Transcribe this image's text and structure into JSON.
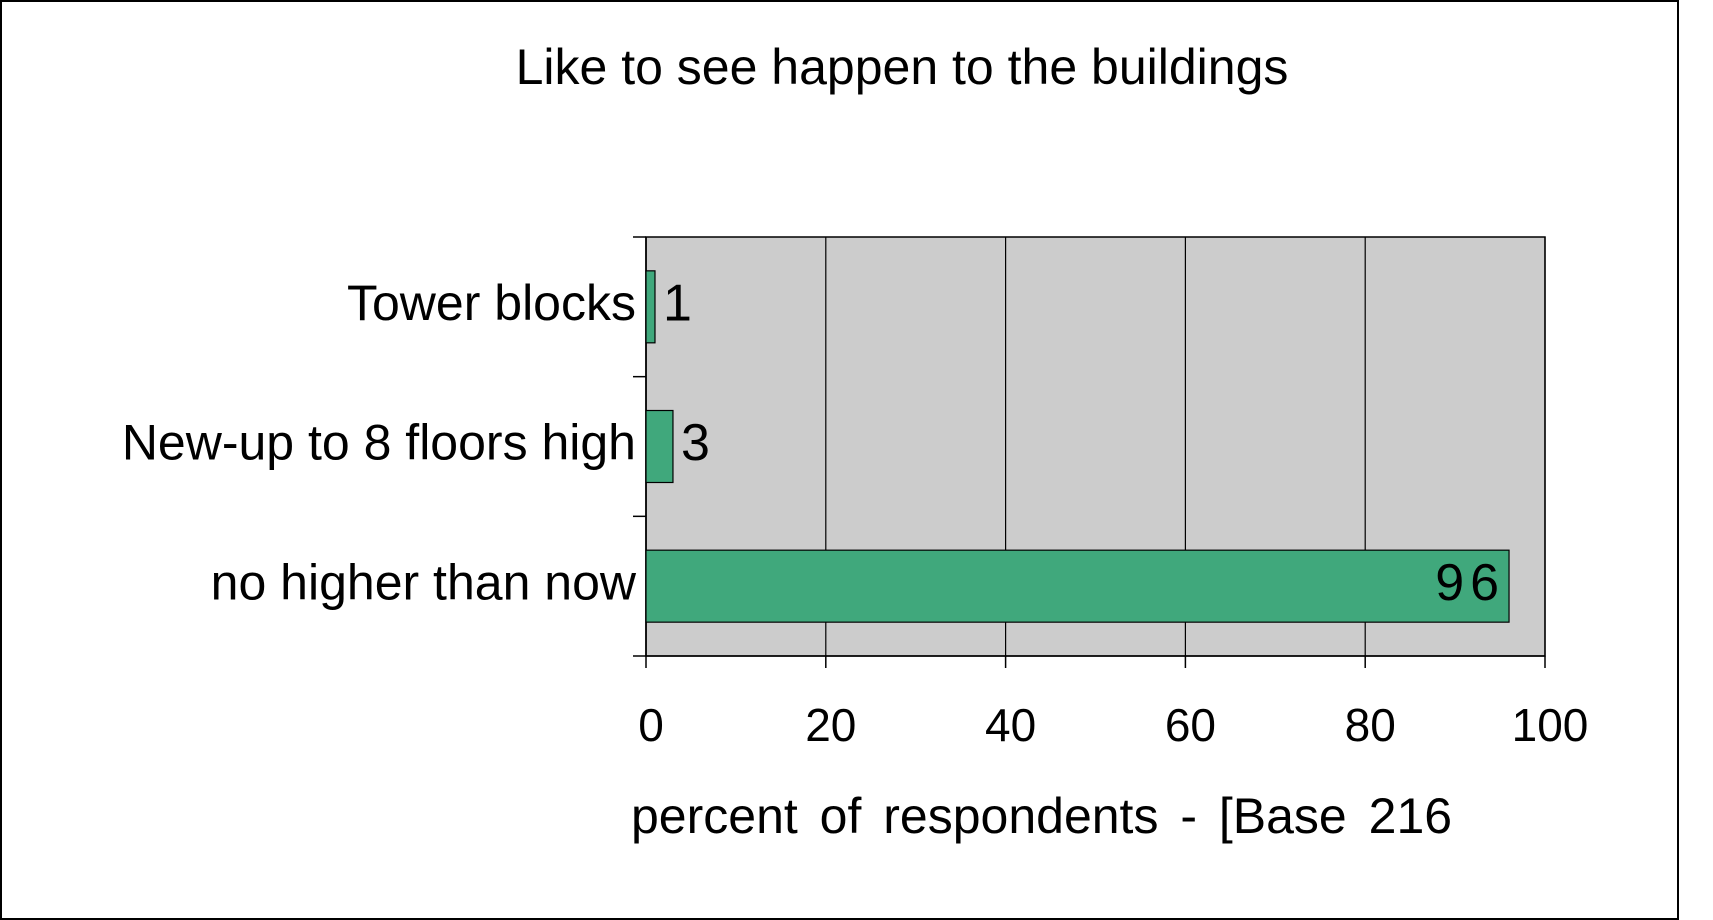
{
  "chart_data": {
    "type": "bar",
    "orientation": "horizontal",
    "title": "Like to see happen to the buildings",
    "categories": [
      "Tower blocks",
      "New-up to 8 floors high",
      "no higher than now"
    ],
    "values": [
      1,
      3,
      96
    ],
    "color": "#40a87c",
    "plot_background": "#cccccc",
    "xlabel": "percent of respondents  -  [Base 216",
    "xlim": [
      0,
      100
    ],
    "xticks": [
      0,
      20,
      40,
      60,
      80,
      100
    ],
    "grid": true
  }
}
